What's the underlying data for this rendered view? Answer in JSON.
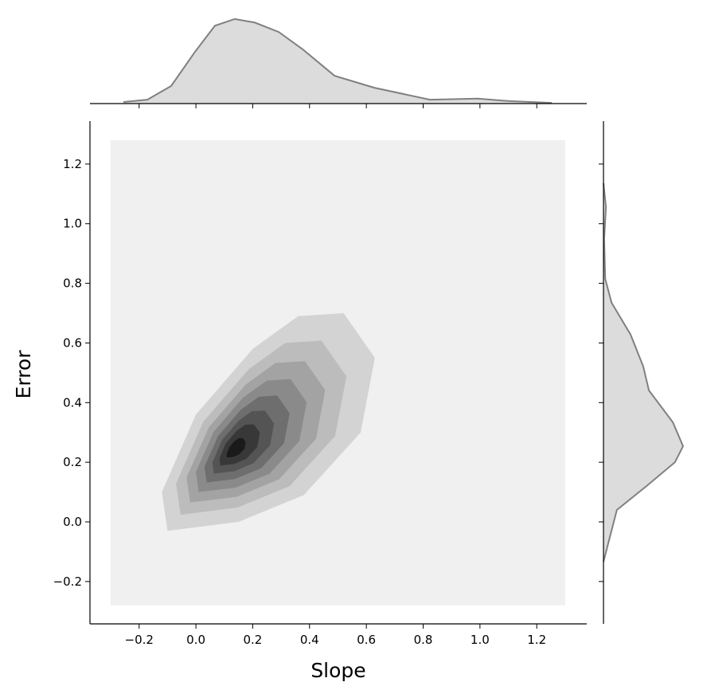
{
  "chart_data": {
    "type": "jointkde",
    "xlabel": "Slope",
    "ylabel": "Error",
    "xlim": [
      -0.373,
      1.376
    ],
    "ylim": [
      -0.342,
      1.344
    ],
    "xticks": [
      {
        "value": -0.2,
        "label": "−0.2"
      },
      {
        "value": 0,
        "label": "0.0"
      },
      0.2,
      0.4,
      0.6,
      0.8,
      {
        "value": 1,
        "label": "1.0"
      },
      1.2
    ],
    "yticks": [
      {
        "value": -0.2,
        "label": "−0.2"
      },
      {
        "value": 0,
        "label": "0.0"
      },
      0.2,
      0.4,
      0.6,
      0.8,
      {
        "value": 1,
        "label": "1.0"
      },
      1.2
    ],
    "contours": [
      {
        "color": "#f0f0f0",
        "x": [
          -0.3,
          1.3,
          1.3,
          -0.3
        ],
        "y": [
          -0.28,
          -0.28,
          1.28,
          1.28
        ]
      },
      {
        "color": "#d3d3d3",
        "x": [
          -0.1,
          0.15,
          0.38,
          0.58,
          0.63,
          0.52,
          0.36,
          0.2,
          0.0,
          -0.12
        ],
        "y": [
          -0.03,
          0.0,
          0.09,
          0.3,
          0.55,
          0.7,
          0.69,
          0.58,
          0.36,
          0.1
        ]
      },
      {
        "color": "#bcbcbc",
        "x": [
          -0.054,
          0.146,
          0.33,
          0.49,
          0.53,
          0.442,
          0.314,
          0.186,
          0.026,
          -0.07
        ],
        "y": [
          0.024,
          0.048,
          0.12,
          0.288,
          0.488,
          0.608,
          0.6,
          0.512,
          0.336,
          0.128
        ]
      },
      {
        "color": "#a3a3a3",
        "x": [
          -0.02,
          0.143,
          0.293,
          0.423,
          0.455,
          0.384,
          0.28,
          0.176,
          0.046,
          -0.033
        ],
        "y": [
          0.065,
          0.084,
          0.143,
          0.279,
          0.442,
          0.539,
          0.533,
          0.461,
          0.318,
          0.149
        ]
      },
      {
        "color": "#8a8a8a",
        "x": [
          0.01,
          0.14,
          0.26,
          0.364,
          0.39,
          0.333,
          0.25,
          0.166,
          0.062,
          0.0
        ],
        "y": [
          0.1,
          0.115,
          0.162,
          0.271,
          0.401,
          0.479,
          0.474,
          0.417,
          0.302,
          0.167
        ]
      },
      {
        "color": "#6e6e6e",
        "x": [
          0.038,
          0.138,
          0.23,
          0.31,
          0.33,
          0.286,
          0.222,
          0.158,
          0.078,
          0.03
        ],
        "y": [
          0.132,
          0.144,
          0.18,
          0.264,
          0.364,
          0.424,
          0.42,
          0.376,
          0.288,
          0.184
        ]
      },
      {
        "color": "#545454",
        "x": [
          0.063,
          0.136,
          0.203,
          0.261,
          0.275,
          0.243,
          0.197,
          0.15,
          0.092,
          0.058
        ],
        "y": [
          0.162,
          0.17,
          0.197,
          0.257,
          0.33,
          0.373,
          0.371,
          0.339,
          0.275,
          0.199
        ]
      },
      {
        "color": "#383838",
        "x": [
          0.086,
          0.134,
          0.178,
          0.216,
          0.225,
          0.204,
          0.174,
          0.143,
          0.105,
          0.083
        ],
        "y": [
          0.189,
          0.194,
          0.212,
          0.251,
          0.299,
          0.327,
          0.326,
          0.305,
          0.263,
          0.213
        ]
      },
      {
        "color": "#1a1a1a",
        "x": [
          0.109,
          0.132,
          0.153,
          0.171,
          0.175,
          0.165,
          0.151,
          0.136,
          0.118,
          0.108
        ],
        "y": [
          0.216,
          0.218,
          0.227,
          0.245,
          0.268,
          0.281,
          0.281,
          0.271,
          0.251,
          0.227
        ]
      }
    ],
    "marginal_fill": "#dcdcdc",
    "marginal_line": "#808080",
    "marginal_x": {
      "lim": [
        0,
        2.6
      ],
      "x": [
        -0.255,
        -0.171,
        -0.087,
        -0.003,
        0.067,
        0.137,
        0.207,
        0.292,
        0.376,
        0.488,
        0.628,
        0.824,
        0.992,
        1.105,
        1.253
      ],
      "density": [
        0.045,
        0.11,
        0.5,
        1.47,
        2.21,
        2.4,
        2.3,
        2.03,
        1.54,
        0.79,
        0.45,
        0.11,
        0.14,
        0.07,
        0.02
      ]
    },
    "marginal_y": {
      "lim": [
        0,
        2.6
      ],
      "y": [
        -0.134,
        0.04,
        0.12,
        0.2,
        0.254,
        0.334,
        0.441,
        0.521,
        0.628,
        0.735,
        0.815,
        0.949,
        1.056,
        1.136
      ],
      "density": [
        0,
        0.38,
        1.22,
        2.03,
        2.26,
        1.97,
        1.29,
        1.13,
        0.77,
        0.23,
        0.05,
        0.02,
        0.07,
        0
      ]
    }
  }
}
